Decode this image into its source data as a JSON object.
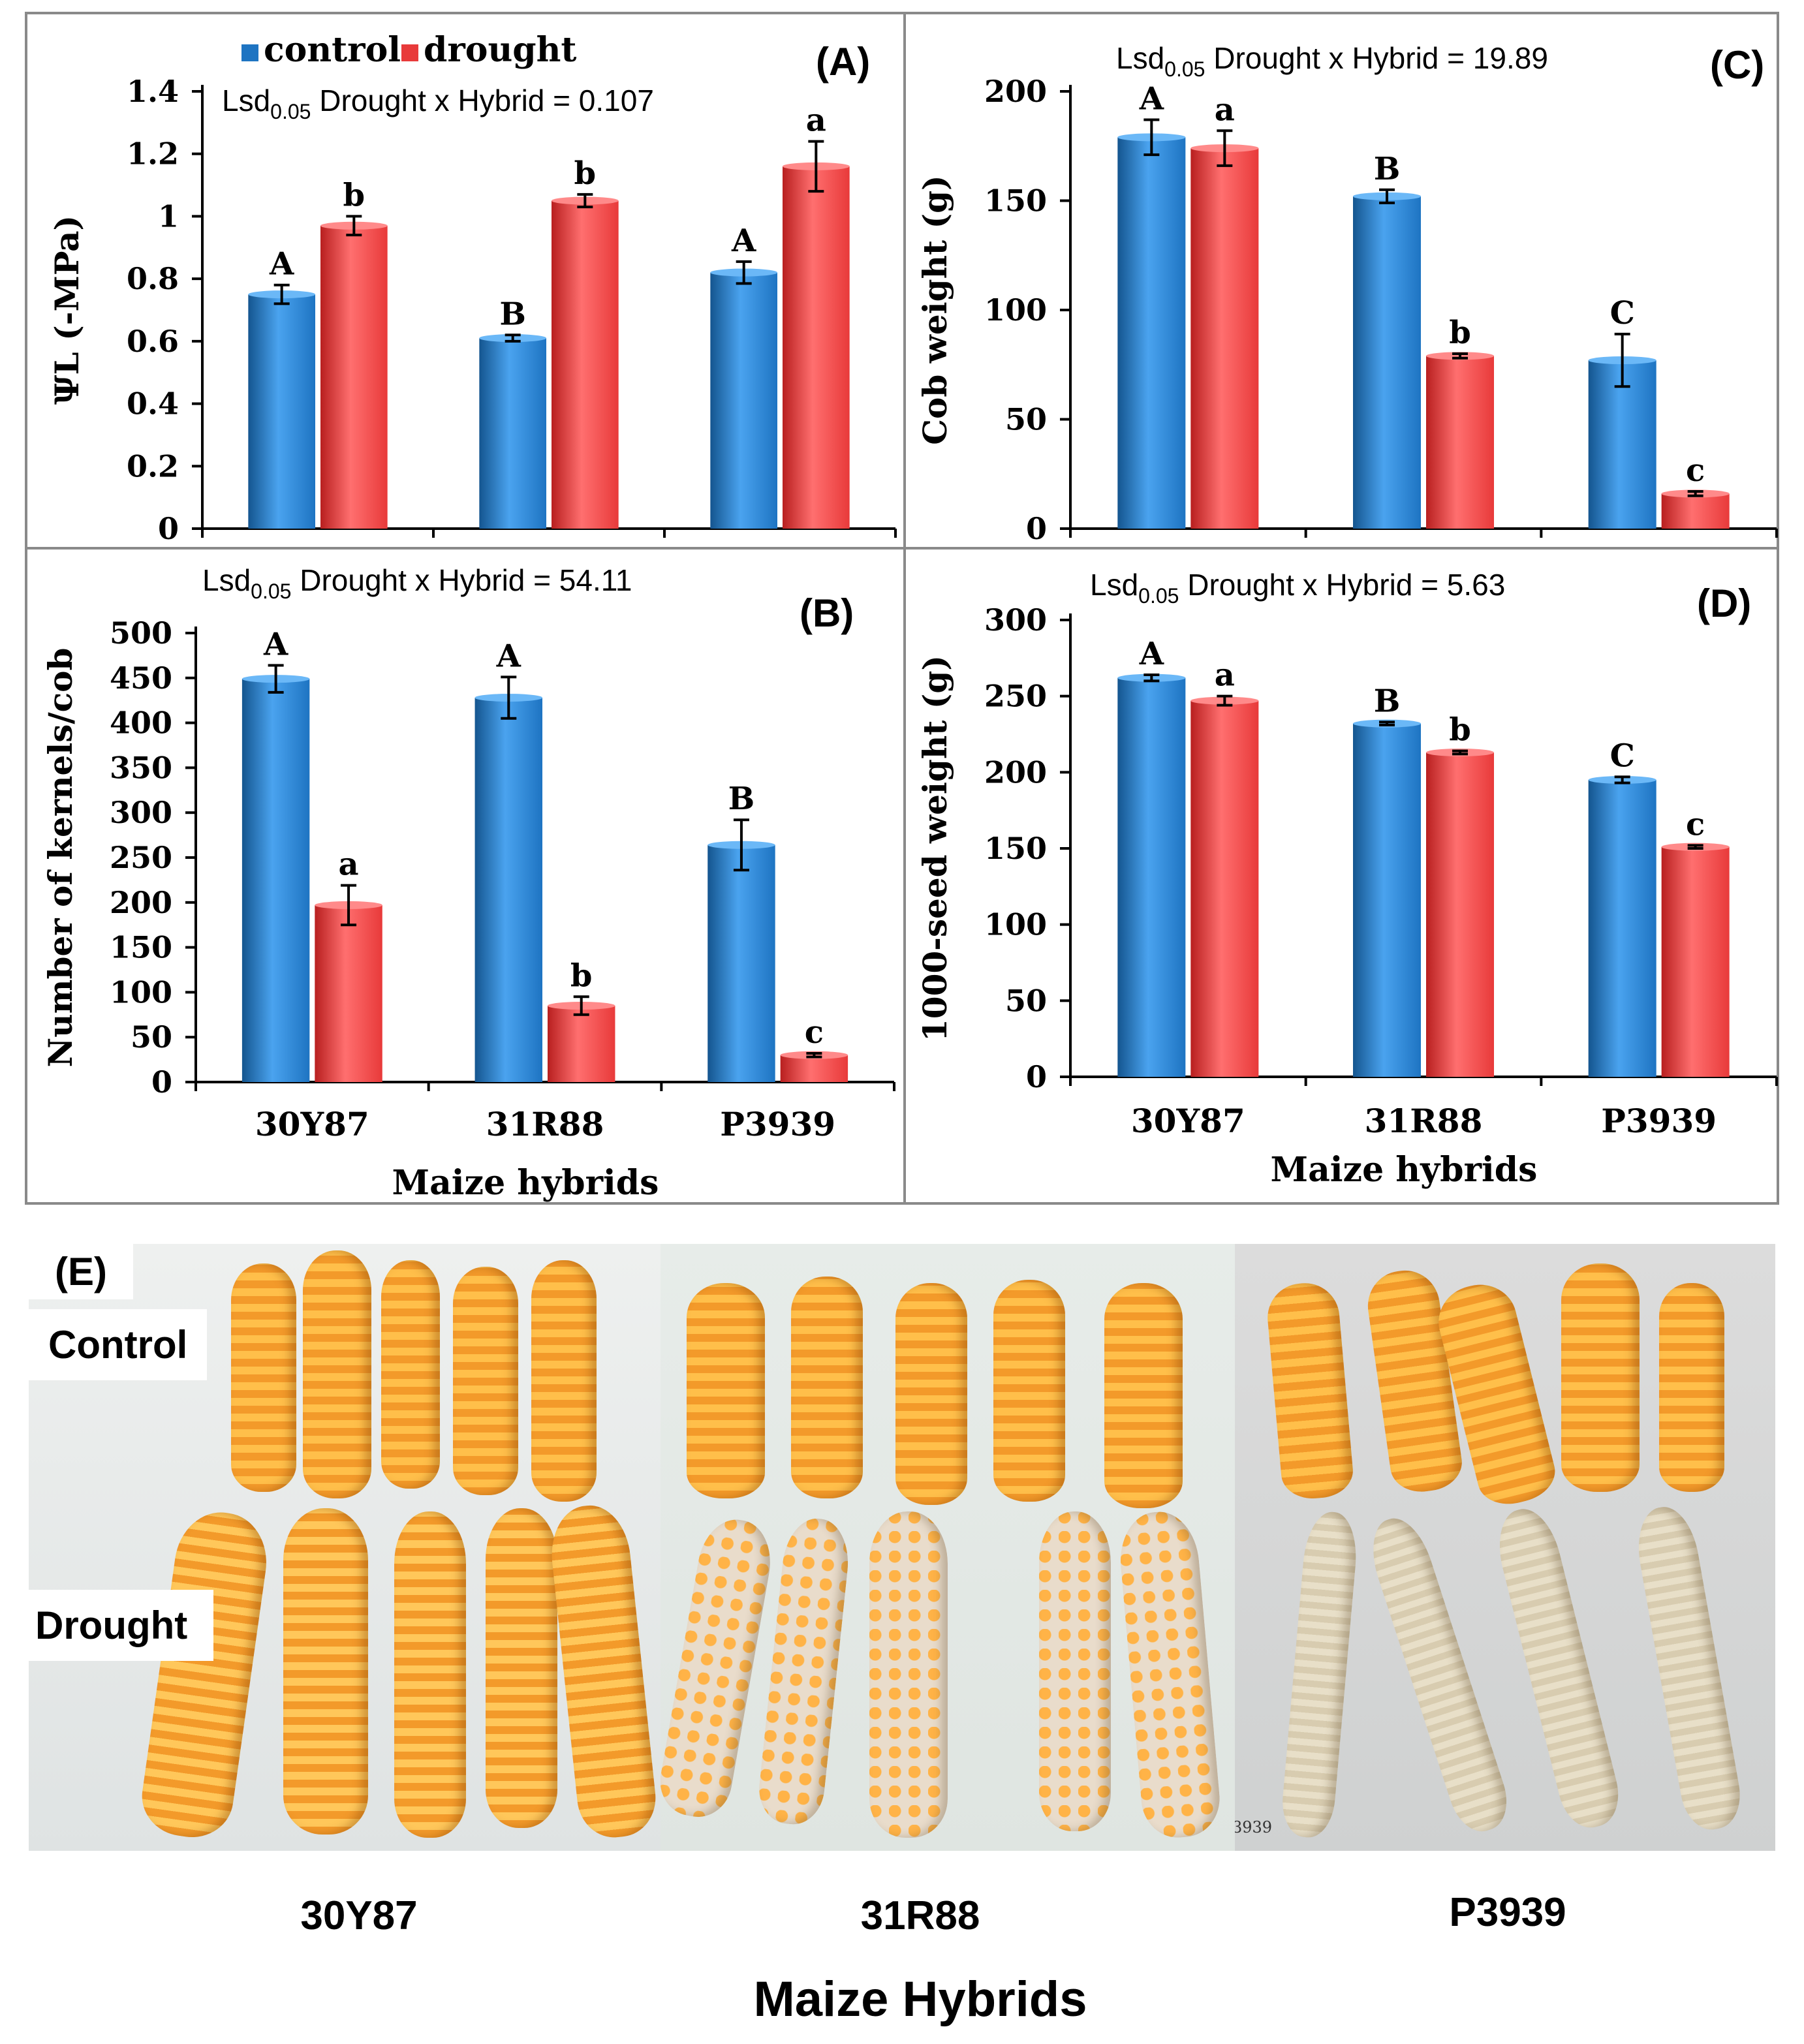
{
  "chart_data": [
    {
      "panel": "(A)",
      "type": "bar",
      "ylabel": "ΨL (-MPa)",
      "ylim": [
        0,
        1.4
      ],
      "yticks": [
        0,
        0.2,
        0.4,
        0.6,
        0.8,
        1,
        1.2,
        1.4
      ],
      "categories": [
        "30Y87",
        "31R88",
        "P3939"
      ],
      "series": [
        {
          "name": "control",
          "values": [
            0.75,
            0.61,
            0.82
          ],
          "errors": [
            0.03,
            0.01,
            0.035
          ],
          "letters": [
            "A",
            "B",
            "A"
          ]
        },
        {
          "name": "drought",
          "values": [
            0.97,
            1.05,
            1.16
          ],
          "errors": [
            0.03,
            0.02,
            0.08
          ],
          "letters": [
            "b",
            "b",
            "a"
          ]
        }
      ],
      "lsd": {
        "prefix": "Lsd",
        "sub": "0.05",
        "text": " Drought x Hybrid = 0.107"
      }
    },
    {
      "panel": "(C)",
      "type": "bar",
      "ylabel": "Cob weight (g)",
      "ylim": [
        0,
        200
      ],
      "yticks": [
        0,
        50,
        100,
        150,
        200
      ],
      "categories": [
        "30Y87",
        "31R88",
        "P3939"
      ],
      "series": [
        {
          "name": "control",
          "values": [
            179,
            152,
            77
          ],
          "errors": [
            8,
            3,
            12
          ],
          "letters": [
            "A",
            "B",
            "C"
          ]
        },
        {
          "name": "drought",
          "values": [
            174,
            79,
            16
          ],
          "errors": [
            8,
            1,
            1
          ],
          "letters": [
            "a",
            "b",
            "c"
          ]
        }
      ],
      "lsd": {
        "prefix": "Lsd",
        "sub": "0.05",
        "text": " Drought x Hybrid = 19.89"
      }
    },
    {
      "panel": "(B)",
      "type": "bar",
      "ylabel": "Number of kernels/cob",
      "xlabel": "Maize hybrids",
      "ylim": [
        0,
        500
      ],
      "yticks": [
        0,
        50,
        100,
        150,
        200,
        250,
        300,
        350,
        400,
        450,
        500
      ],
      "categories": [
        "30Y87",
        "31R88",
        "P3939"
      ],
      "series": [
        {
          "name": "control",
          "values": [
            449,
            428,
            264
          ],
          "errors": [
            15,
            23,
            28
          ],
          "letters": [
            "A",
            "A",
            "B"
          ]
        },
        {
          "name": "drought",
          "values": [
            197,
            85,
            30
          ],
          "errors": [
            22,
            10,
            2
          ],
          "letters": [
            "a",
            "b",
            "c"
          ]
        }
      ],
      "lsd": {
        "prefix": "Lsd",
        "sub": "0.05",
        "text": " Drought x Hybrid = 54.11"
      }
    },
    {
      "panel": "(D)",
      "type": "bar",
      "ylabel": "1000-seed weight (g)",
      "xlabel": "Maize hybrids",
      "ylim": [
        0,
        300
      ],
      "yticks": [
        0,
        50,
        100,
        150,
        200,
        250,
        300
      ],
      "categories": [
        "30Y87",
        "31R88",
        "P3939"
      ],
      "series": [
        {
          "name": "control",
          "values": [
            262,
            232,
            195
          ],
          "errors": [
            2,
            1,
            2
          ],
          "letters": [
            "A",
            "B",
            "C"
          ]
        },
        {
          "name": "drought",
          "values": [
            247,
            213,
            151
          ],
          "errors": [
            3,
            1,
            1
          ],
          "letters": [
            "a",
            "b",
            "c"
          ]
        }
      ],
      "lsd": {
        "prefix": "Lsd",
        "sub": "0.05",
        "text": " Drought x Hybrid = 5.63"
      }
    }
  ],
  "colors": {
    "control": "#1e74c2",
    "drought": "#e83a3a"
  },
  "photos": {
    "panel_label": "(E)",
    "control_label": "Control",
    "drought_label": "Drought",
    "hybrids": [
      "30Y87",
      "31R88",
      "P3939"
    ],
    "xlabel": "Maize Hybrids",
    "watermark": "3939"
  }
}
